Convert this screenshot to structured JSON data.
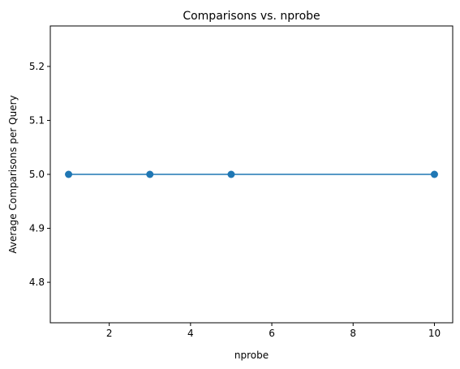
{
  "chart_data": {
    "type": "line",
    "title": "Comparisons vs. nprobe",
    "xlabel": "nprobe",
    "ylabel": "Average Comparisons per Query",
    "xlim": [
      0.55,
      10.45
    ],
    "ylim": [
      4.725,
      5.275
    ],
    "xticks": [
      2,
      4,
      6,
      8,
      10
    ],
    "xtick_labels": [
      "2",
      "4",
      "6",
      "8",
      "10"
    ],
    "yticks": [
      4.8,
      4.9,
      5.0,
      5.1,
      5.2
    ],
    "ytick_labels": [
      "4.8",
      "4.9",
      "5.0",
      "5.1",
      "5.2"
    ],
    "grid": false,
    "legend": "none",
    "series": [
      {
        "color": "#1f77b4",
        "marker": "circle",
        "x": [
          1,
          3,
          5,
          10
        ],
        "y": [
          5.0,
          5.0,
          5.0,
          5.0
        ]
      }
    ]
  }
}
